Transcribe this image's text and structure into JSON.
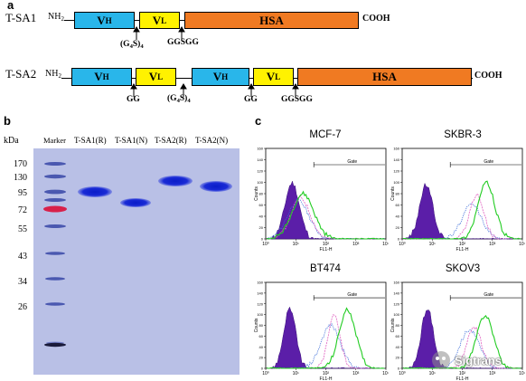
{
  "panel_a": {
    "letter": "a",
    "constructs": [
      {
        "name": "T-SA1",
        "n_term": "NH",
        "n_term_sub": "2",
        "c_term": "COOH",
        "domains": [
          {
            "label": "V",
            "sub": "H",
            "kind": "vh"
          },
          {
            "label": "V",
            "sub": "L",
            "kind": "vl"
          },
          {
            "label": "HSA",
            "sub": "",
            "kind": "hsa"
          }
        ],
        "linkers": [
          "(G4S)4",
          "GGSGG"
        ]
      },
      {
        "name": "T-SA2",
        "n_term": "NH",
        "n_term_sub": "2",
        "c_term": "COOH",
        "domains": [
          {
            "label": "V",
            "sub": "H",
            "kind": "vh"
          },
          {
            "label": "V",
            "sub": "L",
            "kind": "vl"
          },
          {
            "label": "V",
            "sub": "H",
            "kind": "vh"
          },
          {
            "label": "V",
            "sub": "L",
            "kind": "vl"
          },
          {
            "label": "HSA",
            "sub": "",
            "kind": "hsa"
          }
        ],
        "linkers": [
          "GG",
          "(G4S)4",
          "GG",
          "GGSGG"
        ]
      }
    ]
  },
  "panel_b": {
    "letter": "b",
    "unit": "kDa",
    "lanes": [
      "Marker",
      "T-SA1(R)",
      "T-SA1(N)",
      "T-SA2(R)",
      "T-SA2(N)"
    ],
    "marker_kda": [
      "170",
      "130",
      "95",
      "72",
      "55",
      "43",
      "34",
      "26"
    ]
  },
  "panel_c": {
    "letter": "c",
    "cell_lines": [
      "MCF-7",
      "SKBR-3",
      "BT474",
      "SKOV3"
    ],
    "gate_label": "Gate",
    "y_axis_label": "Counts",
    "x_axis_label": "FL1-H",
    "x_ticks": [
      "10⁰",
      "10¹",
      "10²",
      "10³",
      "10⁴"
    ]
  },
  "watermark": "Sigtrans",
  "colors": {
    "vh": "#29b6ea",
    "vl": "#fff200",
    "hsa": "#f07a22",
    "gel_background": "#b9c0e6",
    "gel_band": "#1a2bd6",
    "marker_red": "#d8204a",
    "facs_control_fill": "#5b1ea8",
    "facs_green": "#22cc22",
    "facs_magenta": "#e060c0",
    "facs_blue_dotted": "#3b6bd8"
  }
}
